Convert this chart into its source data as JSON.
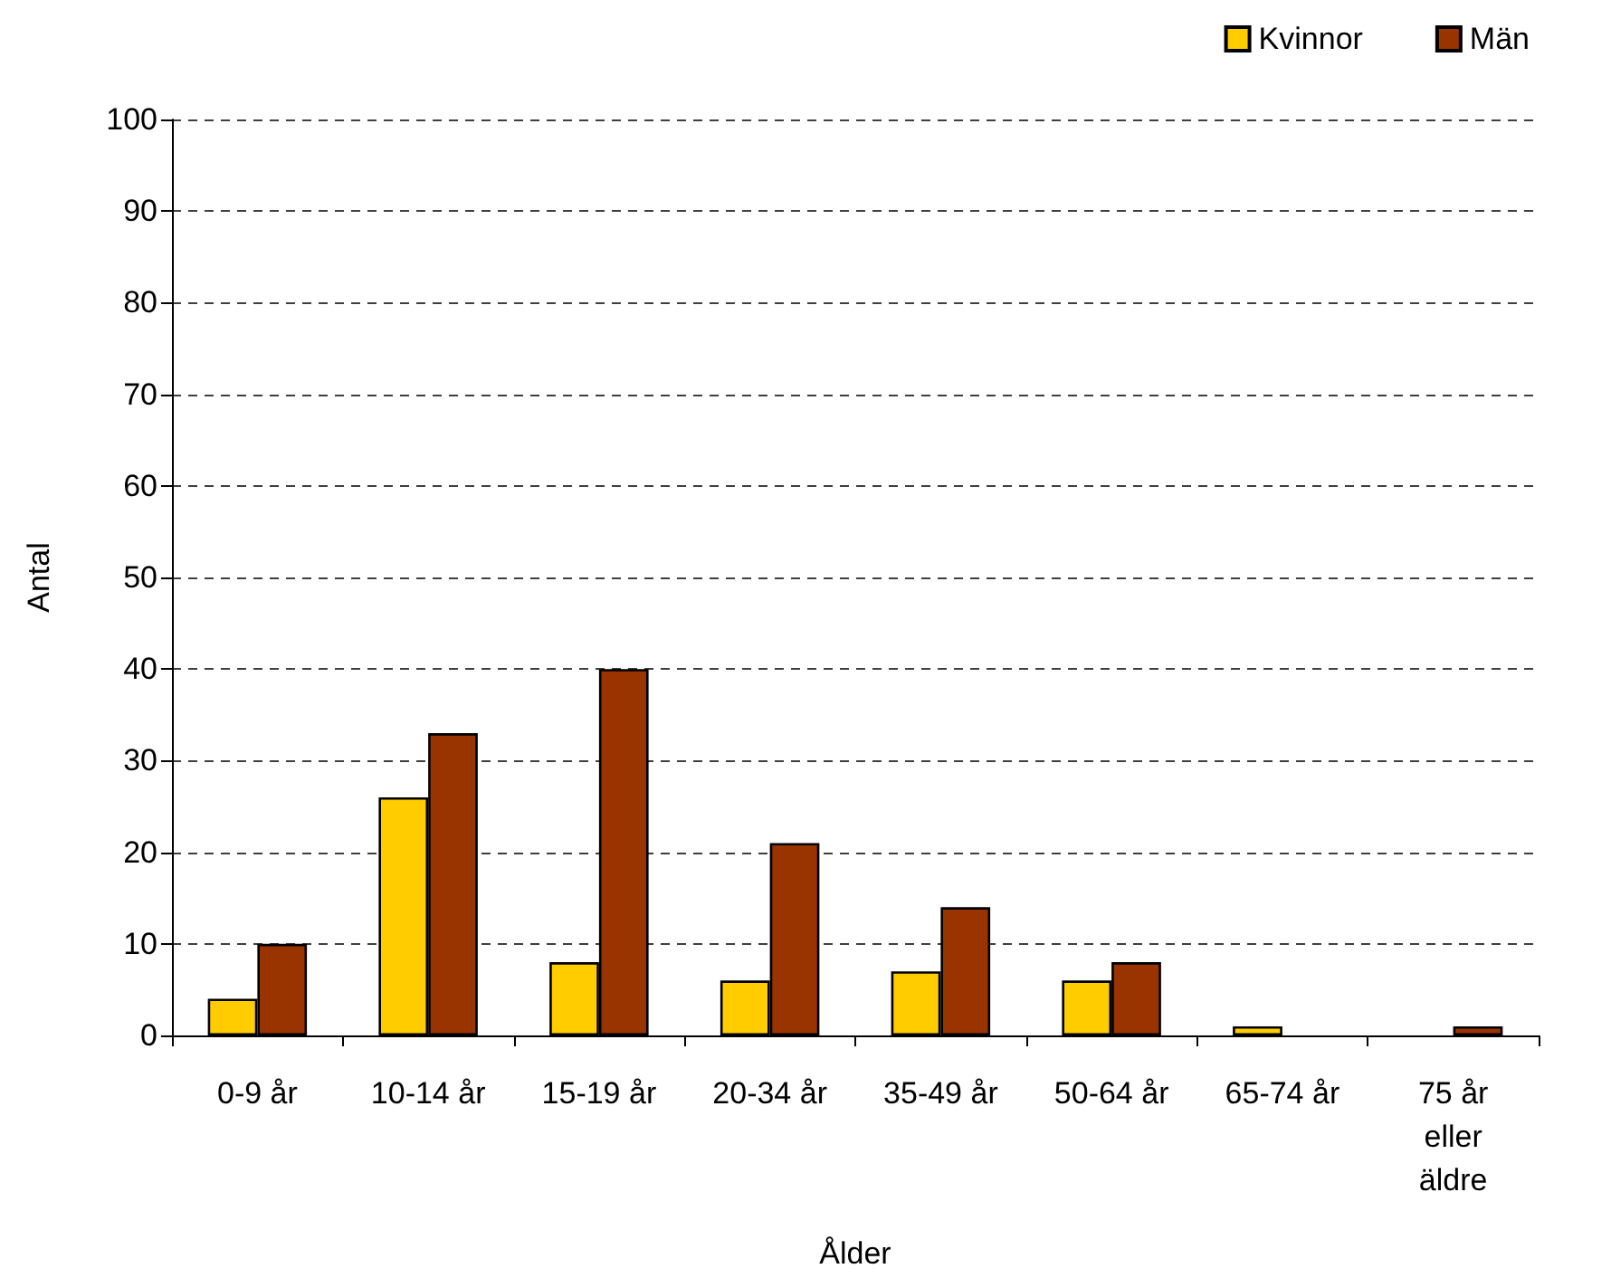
{
  "chart_data": {
    "type": "bar",
    "xlabel": "Ålder",
    "ylabel": "Antal",
    "categories": [
      "0-9 år",
      "10-14 år",
      "15-19 år",
      "20-34 år",
      "35-49 år",
      "50-64 år",
      "65-74 år",
      "75 år eller äldre"
    ],
    "series": [
      {
        "name": "Kvinnor",
        "color": "#ffcc00",
        "values": [
          4,
          26,
          8,
          6,
          7,
          6,
          1,
          0
        ]
      },
      {
        "name": "Män",
        "color": "#993300",
        "values": [
          10,
          33,
          40,
          21,
          14,
          8,
          0,
          1
        ]
      }
    ],
    "ylim": [
      0,
      100
    ],
    "yticks": [
      0,
      10,
      20,
      30,
      40,
      50,
      60,
      70,
      80,
      90,
      100
    ],
    "grid": "y",
    "legend": "top right"
  }
}
